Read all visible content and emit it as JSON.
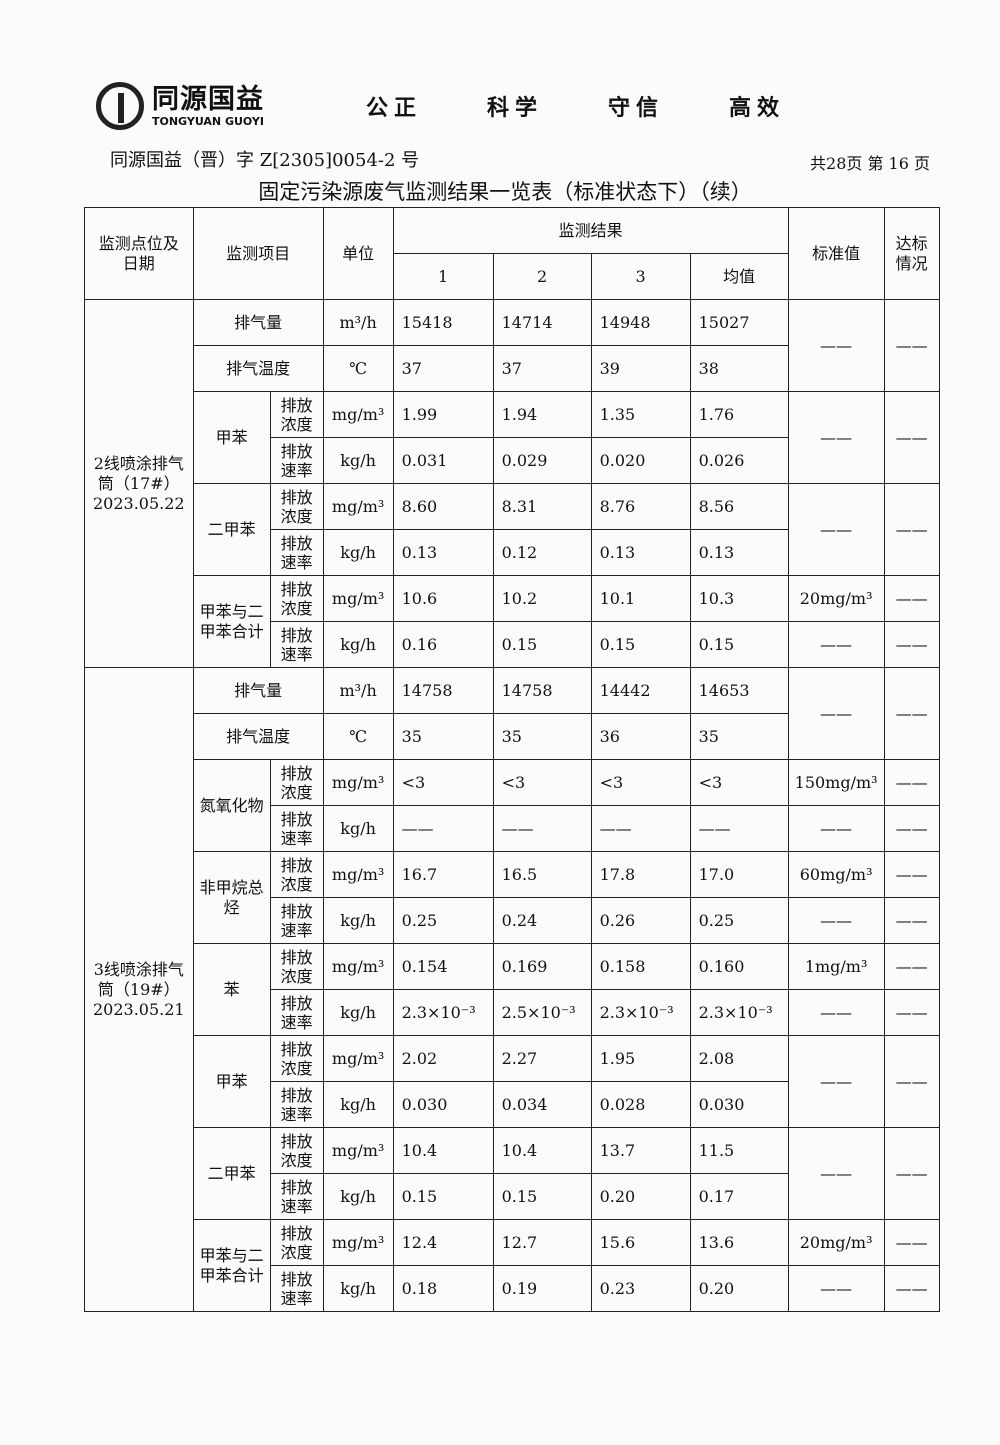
{
  "header": {
    "logo_cn": "同源国益",
    "logo_en": "TONGYUAN GUOYI",
    "motto": [
      "公正",
      "科学",
      "守信",
      "高效"
    ],
    "doc_number": "同源国益（晋）字 Z[2305]0054-2 号",
    "page_info": "共28页  第 16 页",
    "title": "固定污染源废气监测结果一览表（标准状态下）（续）"
  },
  "table": {
    "headers": {
      "location": "监测点位及日期",
      "item": "监测项目",
      "unit": "单位",
      "results": "监测结果",
      "cols": [
        "1",
        "2",
        "3",
        "均值"
      ],
      "standard": "标准值",
      "compliance": "达标情况"
    },
    "groups": [
      {
        "location": "2线喷涂排气筒（17#）2023.05.22",
        "rows": [
          {
            "item": "排气量",
            "unit": "m³/h",
            "values": [
              "15418",
              "14714",
              "14948",
              "15027"
            ],
            "std": "——",
            "comp": "——",
            "stdspan": 2
          },
          {
            "item": "排气温度",
            "unit": "℃",
            "values": [
              "37",
              "37",
              "39",
              "38"
            ]
          },
          {
            "item": "甲苯",
            "sub": "排放浓度",
            "unit": "mg/m³",
            "values": [
              "1.99",
              "1.94",
              "1.35",
              "1.76"
            ],
            "std": "——",
            "comp": "——",
            "stdspan": 2
          },
          {
            "sub": "排放速率",
            "unit": "kg/h",
            "values": [
              "0.031",
              "0.029",
              "0.020",
              "0.026"
            ]
          },
          {
            "item": "二甲苯",
            "sub": "排放浓度",
            "unit": "mg/m³",
            "values": [
              "8.60",
              "8.31",
              "8.76",
              "8.56"
            ],
            "std": "——",
            "comp": "——",
            "stdspan": 2
          },
          {
            "sub": "排放速率",
            "unit": "kg/h",
            "values": [
              "0.13",
              "0.12",
              "0.13",
              "0.13"
            ]
          },
          {
            "item": "甲苯与二甲苯合计",
            "sub": "排放浓度",
            "unit": "mg/m³",
            "values": [
              "10.6",
              "10.2",
              "10.1",
              "10.3"
            ],
            "std": "20mg/m³",
            "comp": "——"
          },
          {
            "sub": "排放速率",
            "unit": "kg/h",
            "values": [
              "0.16",
              "0.15",
              "0.15",
              "0.15"
            ],
            "std": "——",
            "comp": "——"
          }
        ]
      },
      {
        "location": "3线喷涂排气筒（19#）2023.05.21",
        "rows": [
          {
            "item": "排气量",
            "unit": "m³/h",
            "values": [
              "14758",
              "14758",
              "14442",
              "14653"
            ],
            "std": "——",
            "comp": "——",
            "stdspan": 2
          },
          {
            "item": "排气温度",
            "unit": "℃",
            "values": [
              "35",
              "35",
              "36",
              "35"
            ]
          },
          {
            "item": "氮氧化物",
            "sub": "排放浓度",
            "unit": "mg/m³",
            "values": [
              "<3",
              "<3",
              "<3",
              "<3"
            ],
            "std": "150mg/m³",
            "comp": "——"
          },
          {
            "sub": "排放速率",
            "unit": "kg/h",
            "values": [
              "——",
              "——",
              "——",
              "——"
            ],
            "std": "——",
            "comp": "——"
          },
          {
            "item": "非甲烷总烃",
            "sub": "排放浓度",
            "unit": "mg/m³",
            "values": [
              "16.7",
              "16.5",
              "17.8",
              "17.0"
            ],
            "std": "60mg/m³",
            "comp": "——"
          },
          {
            "sub": "排放速率",
            "unit": "kg/h",
            "values": [
              "0.25",
              "0.24",
              "0.26",
              "0.25"
            ],
            "std": "——",
            "comp": "——"
          },
          {
            "item": "苯",
            "sub": "排放浓度",
            "unit": "mg/m³",
            "values": [
              "0.154",
              "0.169",
              "0.158",
              "0.160"
            ],
            "std": "1mg/m³",
            "comp": "——"
          },
          {
            "sub": "排放速率",
            "unit": "kg/h",
            "values": [
              "2.3×10⁻³",
              "2.5×10⁻³",
              "2.3×10⁻³",
              "2.3×10⁻³"
            ],
            "std": "——",
            "comp": "——"
          },
          {
            "item": "甲苯",
            "sub": "排放浓度",
            "unit": "mg/m³",
            "values": [
              "2.02",
              "2.27",
              "1.95",
              "2.08"
            ],
            "std": "——",
            "comp": "——",
            "stdspan": 2
          },
          {
            "sub": "排放速率",
            "unit": "kg/h",
            "values": [
              "0.030",
              "0.034",
              "0.028",
              "0.030"
            ]
          },
          {
            "item": "二甲苯",
            "sub": "排放浓度",
            "unit": "mg/m³",
            "values": [
              "10.4",
              "10.4",
              "13.7",
              "11.5"
            ],
            "std": "——",
            "comp": "——",
            "stdspan": 2
          },
          {
            "sub": "排放速率",
            "unit": "kg/h",
            "values": [
              "0.15",
              "0.15",
              "0.20",
              "0.17"
            ]
          },
          {
            "item": "甲苯与二甲苯合计",
            "sub": "排放浓度",
            "unit": "mg/m³",
            "values": [
              "12.4",
              "12.7",
              "15.6",
              "13.6"
            ],
            "std": "20mg/m³",
            "comp": "——"
          },
          {
            "sub": "排放速率",
            "unit": "kg/h",
            "values": [
              "0.18",
              "0.19",
              "0.23",
              "0.20"
            ],
            "std": "——",
            "comp": "——"
          }
        ]
      }
    ]
  }
}
